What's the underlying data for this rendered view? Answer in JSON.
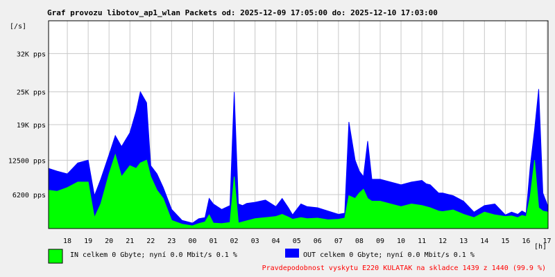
{
  "colors": {
    "background": "#f0f0f0",
    "plot_bg": "#ffffff",
    "grid": "#c8c8c8",
    "in_series": "#00ff00",
    "out_series": "#0000ff",
    "warning": "#ff0000"
  },
  "chart_data": {
    "type": "area",
    "title": "Graf provozu libotov_ap1_wlan Packets od: 2025-12-09 17:05:00 do: 2025-12-10 17:03:00",
    "ylabel": "[/s]",
    "xlabel": "[h]",
    "y_ticks": [
      {
        "value": 6200,
        "label": "6200 pps"
      },
      {
        "value": 12500,
        "label": "12500 pps"
      },
      {
        "value": 19000,
        "label": "19K pps"
      },
      {
        "value": 25000,
        "label": "25K pps"
      },
      {
        "value": 32000,
        "label": "32K pps"
      }
    ],
    "ylim": [
      0,
      38000
    ],
    "x_ticks": [
      "18",
      "19",
      "20",
      "21",
      "22",
      "23",
      "00",
      "01",
      "02",
      "03",
      "04",
      "05",
      "06",
      "07",
      "08",
      "09",
      "10",
      "11",
      "12",
      "13",
      "14",
      "15",
      "16",
      "17"
    ],
    "x_range_hours": [
      17.1,
      41.05
    ],
    "grid": true,
    "series": [
      {
        "name": "OUT",
        "x": [
          17.1,
          17.5,
          18.0,
          18.5,
          19.0,
          19.3,
          19.6,
          20.0,
          20.3,
          20.6,
          21.0,
          21.3,
          21.5,
          21.8,
          22.0,
          22.3,
          22.6,
          23.0,
          23.5,
          24.0,
          24.3,
          24.6,
          24.8,
          25.0,
          25.4,
          25.8,
          26.0,
          26.2,
          26.4,
          26.6,
          27.0,
          27.5,
          28.0,
          28.3,
          28.6,
          28.8,
          29.2,
          29.5,
          30.0,
          30.5,
          31.0,
          31.3,
          31.5,
          31.8,
          32.0,
          32.2,
          32.4,
          32.6,
          33.0,
          33.5,
          34.0,
          34.5,
          35.0,
          35.2,
          35.4,
          35.8,
          36.0,
          36.5,
          37.0,
          37.5,
          38.0,
          38.5,
          39.0,
          39.3,
          39.6,
          39.8,
          40.0,
          40.2,
          40.4,
          40.6,
          40.8,
          41.05
        ],
        "values": [
          11000,
          10500,
          10000,
          12000,
          12500,
          6000,
          9000,
          13500,
          17000,
          15000,
          17500,
          21500,
          25000,
          23000,
          11500,
          10000,
          7500,
          3500,
          1500,
          1000,
          1800,
          2000,
          5500,
          4500,
          3500,
          4200,
          25000,
          4500,
          4200,
          4600,
          4800,
          5200,
          4000,
          5500,
          3800,
          2500,
          4500,
          4000,
          3800,
          3200,
          2600,
          2800,
          19500,
          12500,
          10500,
          9500,
          16000,
          9000,
          9000,
          8500,
          8000,
          8500,
          8800,
          8200,
          8000,
          6500,
          6500,
          6000,
          5000,
          3000,
          4200,
          4500,
          2500,
          3000,
          2600,
          3200,
          2800,
          11500,
          18000,
          25500,
          6500,
          4000
        ]
      },
      {
        "name": "IN",
        "x": [
          17.1,
          17.5,
          18.0,
          18.5,
          19.0,
          19.3,
          19.6,
          20.0,
          20.3,
          20.6,
          21.0,
          21.3,
          21.5,
          21.8,
          22.0,
          22.3,
          22.6,
          23.0,
          23.5,
          24.0,
          24.3,
          24.6,
          24.8,
          25.0,
          25.4,
          25.8,
          26.0,
          26.2,
          26.4,
          26.6,
          27.0,
          27.5,
          28.0,
          28.3,
          28.6,
          28.8,
          29.2,
          29.5,
          30.0,
          30.5,
          31.0,
          31.3,
          31.5,
          31.8,
          32.0,
          32.2,
          32.4,
          32.6,
          33.0,
          33.5,
          34.0,
          34.5,
          35.0,
          35.2,
          35.4,
          35.8,
          36.0,
          36.5,
          37.0,
          37.5,
          38.0,
          38.5,
          39.0,
          39.3,
          39.6,
          39.8,
          40.0,
          40.2,
          40.4,
          40.6,
          40.8,
          41.05
        ],
        "values": [
          7000,
          6800,
          7500,
          8500,
          8500,
          2000,
          4500,
          10000,
          13500,
          9500,
          11500,
          11000,
          12000,
          12500,
          9500,
          7000,
          5500,
          1500,
          800,
          500,
          900,
          1200,
          2500,
          1000,
          900,
          1100,
          9500,
          1000,
          1200,
          1400,
          1800,
          2000,
          2200,
          2600,
          2100,
          1700,
          2000,
          1800,
          1900,
          1600,
          1700,
          1900,
          6000,
          5500,
          6500,
          7200,
          5500,
          5000,
          5000,
          4500,
          4000,
          4500,
          4200,
          4000,
          3800,
          3200,
          3100,
          3400,
          2600,
          2000,
          3000,
          2500,
          2200,
          2300,
          2000,
          2400,
          2200,
          6000,
          12500,
          3800,
          3200,
          3000
        ]
      }
    ]
  },
  "legend": {
    "in_text": "IN celkem 0 Gbyte; nyní   0.0 Mbit/s 0.1 %",
    "out_text": "OUT celkem 0 Gbyte; nyní   0.0 Mbit/s 0.1 %"
  },
  "warning_text": "Pravdepodobnost vyskytu E220 KULATAK na skladce 1439 z 1440 (99.9 %)"
}
